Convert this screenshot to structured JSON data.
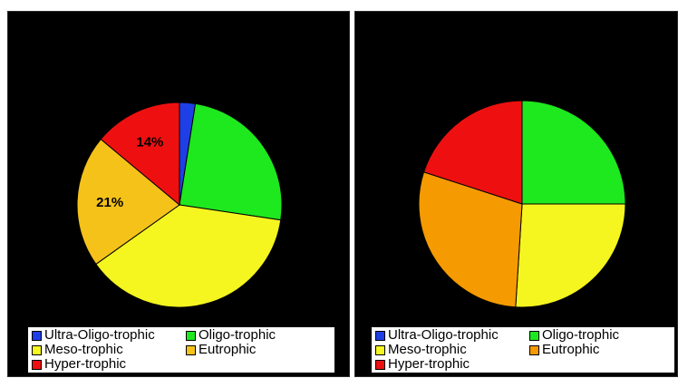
{
  "chart_data": [
    {
      "type": "pie",
      "categories": [
        "Ultra-Oligo-trophic",
        "Oligo-trophic",
        "Meso-trophic",
        "Eutrophic",
        "Hyper-trophic"
      ],
      "values": [
        2.5,
        25,
        38,
        21,
        14
      ],
      "data_labels": [
        "",
        "",
        "",
        "21%",
        "14%"
      ],
      "colors": [
        "#1f3fe6",
        "#1ee81e",
        "#f5f520",
        "#f5c21a",
        "#ee1010"
      ],
      "legend_position": "bottom"
    },
    {
      "type": "pie",
      "categories": [
        "Ultra-Oligo-trophic",
        "Oligo-trophic",
        "Meso-trophic",
        "Eutrophic",
        "Hyper-trophic"
      ],
      "values": [
        0,
        25,
        26,
        29,
        20
      ],
      "data_labels": [
        "",
        "",
        "",
        "",
        ""
      ],
      "colors": [
        "#1f3fe6",
        "#1ee81e",
        "#f5f520",
        "#f59a00",
        "#ee1010"
      ],
      "legend_position": "bottom"
    }
  ]
}
